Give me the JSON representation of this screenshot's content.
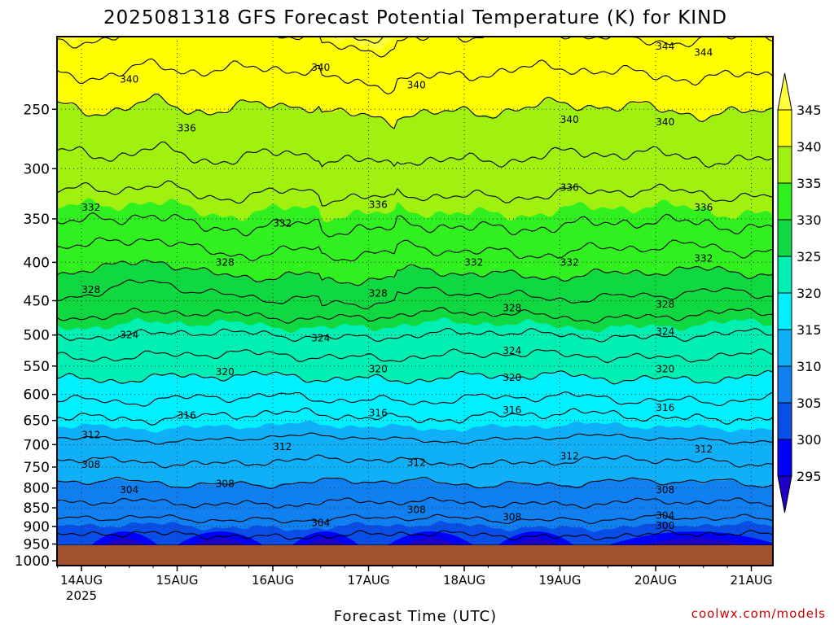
{
  "header": {
    "title": "2025081318 GFS Forecast Potential Temperature (K) for KIND"
  },
  "footer": {
    "credit": "coolwx.com/models"
  },
  "chart_data": {
    "type": "heatmap",
    "title": "2025081318 GFS Forecast Potential Temperature (K) for KIND",
    "xlabel": "Forecast Time (UTC)",
    "ylabel": "",
    "x_ticks": [
      "14AUG",
      "15AUG",
      "16AUG",
      "17AUG",
      "18AUG",
      "19AUG",
      "20AUG",
      "21AUG"
    ],
    "x_subtick": "2025",
    "y_ticks": [
      250,
      300,
      350,
      400,
      450,
      500,
      550,
      600,
      650,
      700,
      750,
      800,
      850,
      900,
      950,
      1000
    ],
    "y_scale": "log",
    "y_inverted": true,
    "ylim": [
      1015,
      200
    ],
    "grid": true,
    "colorbar": {
      "levels": [
        295,
        300,
        305,
        310,
        315,
        320,
        325,
        330,
        335,
        340,
        345
      ],
      "colors": [
        "#1c00c8",
        "#0000ff",
        "#0a4ee8",
        "#1080f0",
        "#10b0f8",
        "#00f0ff",
        "#00f0b4",
        "#10d840",
        "#30f020",
        "#a0f010",
        "#ffff00",
        "#ffff40"
      ],
      "extend": "both"
    },
    "profile_levels": [
      1000,
      950,
      900,
      850,
      800,
      750,
      700,
      650,
      600,
      550,
      500,
      450,
      400,
      350,
      300,
      250,
      200
    ],
    "profile_theta": [
      301,
      303,
      305,
      307.5,
      309.5,
      311.5,
      313.5,
      315.5,
      318.5,
      321,
      324,
      327.5,
      331,
      334.5,
      337.5,
      340,
      344
    ],
    "contour_labels": [
      {
        "text": "344",
        "x": "20AUG",
        "y": 200
      },
      {
        "text": "344",
        "x": "20AUG+",
        "y": 210
      },
      {
        "text": "340",
        "x": "14AUG+",
        "y": 228
      },
      {
        "text": "340",
        "x": "16AUG+",
        "y": 220
      },
      {
        "text": "340",
        "x": "17AUG+",
        "y": 232
      },
      {
        "text": "340",
        "x": "19AUG",
        "y": 258
      },
      {
        "text": "340",
        "x": "20AUG",
        "y": 260
      },
      {
        "text": "336",
        "x": "15AUG",
        "y": 265
      },
      {
        "text": "336",
        "x": "17AUG",
        "y": 335
      },
      {
        "text": "336",
        "x": "19AUG",
        "y": 318
      },
      {
        "text": "336",
        "x": "20AUG+",
        "y": 338
      },
      {
        "text": "332",
        "x": "14AUG",
        "y": 338
      },
      {
        "text": "332",
        "x": "16AUG",
        "y": 355
      },
      {
        "text": "332",
        "x": "18AUG",
        "y": 400
      },
      {
        "text": "332",
        "x": "19AUG",
        "y": 400
      },
      {
        "text": "332",
        "x": "20AUG+",
        "y": 395
      },
      {
        "text": "328",
        "x": "14AUG",
        "y": 435
      },
      {
        "text": "328",
        "x": "15AUG+",
        "y": 400
      },
      {
        "text": "328",
        "x": "17AUG",
        "y": 440
      },
      {
        "text": "328",
        "x": "18AUG+",
        "y": 460
      },
      {
        "text": "328",
        "x": "20AUG",
        "y": 455
      },
      {
        "text": "324",
        "x": "14AUG+",
        "y": 500
      },
      {
        "text": "324",
        "x": "16AUG+",
        "y": 505
      },
      {
        "text": "324",
        "x": "18AUG+",
        "y": 525
      },
      {
        "text": "324",
        "x": "20AUG",
        "y": 495
      },
      {
        "text": "320",
        "x": "15AUG+",
        "y": 560
      },
      {
        "text": "320",
        "x": "17AUG",
        "y": 555
      },
      {
        "text": "320",
        "x": "18AUG+",
        "y": 570
      },
      {
        "text": "320",
        "x": "20AUG",
        "y": 555
      },
      {
        "text": "316",
        "x": "15AUG",
        "y": 640
      },
      {
        "text": "316",
        "x": "17AUG",
        "y": 635
      },
      {
        "text": "316",
        "x": "18AUG+",
        "y": 630
      },
      {
        "text": "316",
        "x": "20AUG",
        "y": 625
      },
      {
        "text": "312",
        "x": "14AUG",
        "y": 680
      },
      {
        "text": "312",
        "x": "16AUG",
        "y": 705
      },
      {
        "text": "312",
        "x": "17AUG+",
        "y": 740
      },
      {
        "text": "312",
        "x": "19AUG",
        "y": 725
      },
      {
        "text": "312",
        "x": "20AUG+",
        "y": 710
      },
      {
        "text": "308",
        "x": "14AUG",
        "y": 745
      },
      {
        "text": "308",
        "x": "15AUG+",
        "y": 790
      },
      {
        "text": "308",
        "x": "17AUG+",
        "y": 855
      },
      {
        "text": "308",
        "x": "18AUG+",
        "y": 875
      },
      {
        "text": "308",
        "x": "20AUG",
        "y": 805
      },
      {
        "text": "304",
        "x": "14AUG+",
        "y": 805
      },
      {
        "text": "304",
        "x": "16AUG+",
        "y": 890
      },
      {
        "text": "304",
        "x": "20AUG",
        "y": 870
      },
      {
        "text": "300",
        "x": "20AUG",
        "y": 898
      }
    ]
  }
}
